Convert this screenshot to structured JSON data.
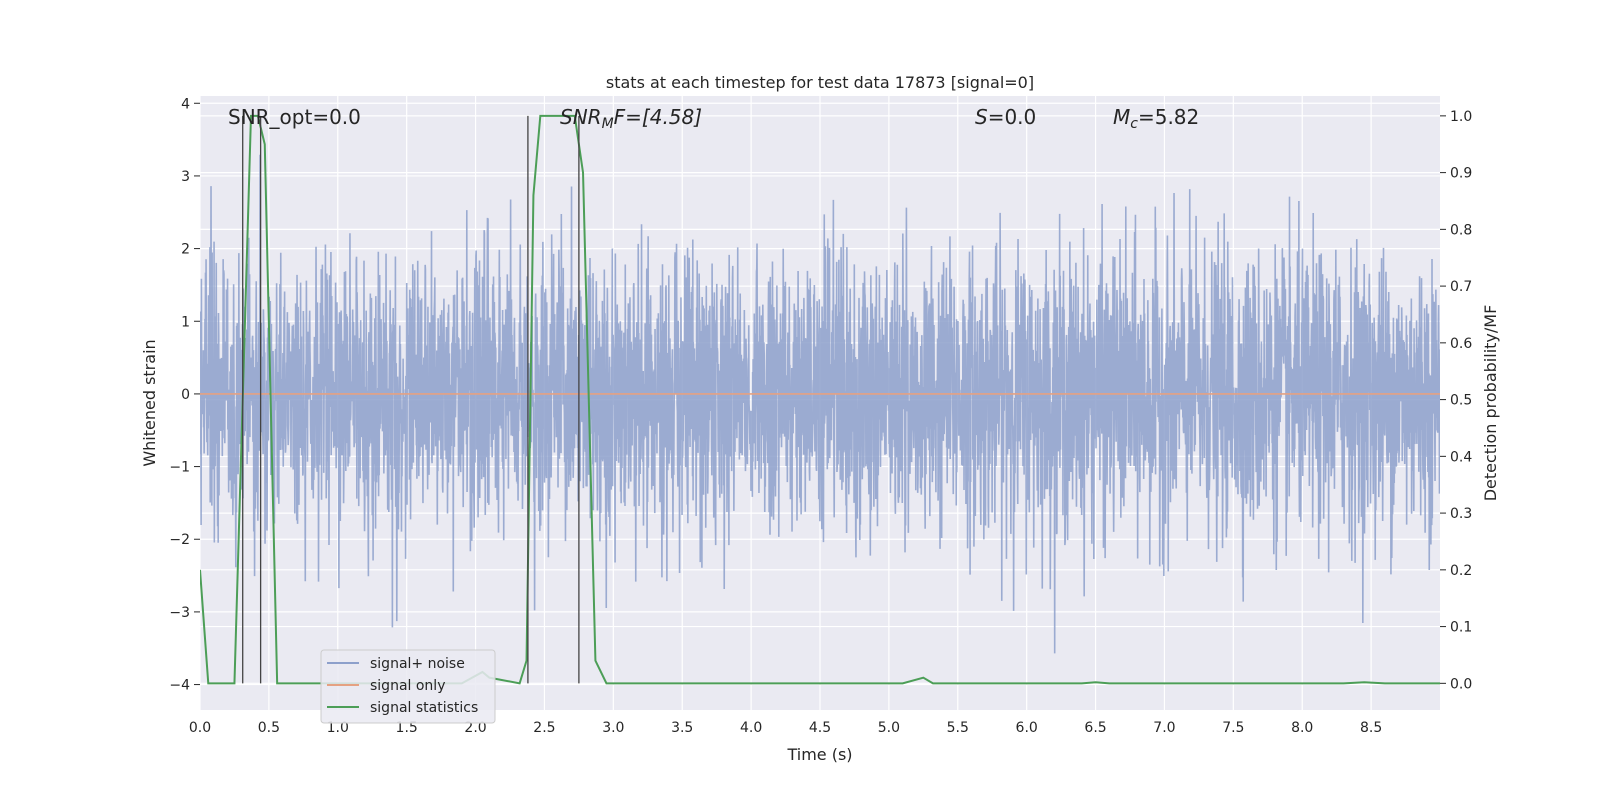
{
  "chart_data": {
    "type": "line",
    "title": "stats at each timestep for test data 17873 [signal=0]",
    "xlabel": "Time (s)",
    "ylabel_left": "Whitened strain",
    "ylabel_right": "Detection probability/MF",
    "xlim": [
      0,
      9.0
    ],
    "ylim_left": [
      -4.35,
      4.1
    ],
    "ylim_right": [
      -0.047,
      1.035
    ],
    "x_ticks": [
      0.0,
      0.5,
      1.0,
      1.5,
      2.0,
      2.5,
      3.0,
      3.5,
      4.0,
      4.5,
      5.0,
      5.5,
      6.0,
      6.5,
      7.0,
      7.5,
      8.0,
      8.5
    ],
    "x_tick_labels": [
      "0.0",
      "0.5",
      "1.0",
      "1.5",
      "2.0",
      "2.5",
      "3.0",
      "3.5",
      "4.0",
      "4.5",
      "5.0",
      "5.5",
      "6.0",
      "6.5",
      "7.0",
      "7.5",
      "8.0",
      "8.5"
    ],
    "y_left_ticks": [
      4,
      3,
      2,
      1,
      0,
      -1,
      -2,
      -3,
      -4
    ],
    "y_left_tick_labels": [
      "4",
      "3",
      "2",
      "1",
      "0",
      "−1",
      "−2",
      "−3",
      "−4"
    ],
    "y_right_ticks": [
      1.0,
      0.9,
      0.8,
      0.7,
      0.6,
      0.5,
      0.4,
      0.3,
      0.2,
      0.1,
      0.0
    ],
    "y_right_tick_labels": [
      "1.0",
      "0.9",
      "0.8",
      "0.7",
      "0.6",
      "0.5",
      "0.4",
      "0.3",
      "0.2",
      "0.1",
      "0.0"
    ],
    "grid": true,
    "legend_position": "bottom-left",
    "annotations": {
      "snr_opt": "SNR_opt=0.0",
      "snr_mf_prefix": "SNR",
      "snr_mf_sub": "M",
      "snr_mf_suffix": "F=[4.58]",
      "s_symbol": "S",
      "s_value": "=0.0",
      "mc_symbol": "M",
      "mc_sub": "c",
      "mc_value": "=5.82"
    },
    "markers_x": [
      0.31,
      0.44,
      2.38,
      2.75
    ],
    "series": [
      {
        "name": "signal+ noise",
        "color": "#8da0cb",
        "axis": "left",
        "noise_std": 0.95,
        "x_range": [
          0,
          9.0
        ],
        "samples": 4500
      },
      {
        "name": "signal only",
        "color": "#e5a182",
        "axis": "left",
        "x": [
          0,
          9.0
        ],
        "y": [
          0,
          0
        ]
      },
      {
        "name": "signal statistics",
        "color": "#4c9e57",
        "axis": "right",
        "x": [
          0.0,
          0.06,
          0.25,
          0.37,
          0.42,
          0.47,
          0.56,
          1.9,
          2.05,
          2.1,
          2.32,
          2.37,
          2.42,
          2.47,
          2.72,
          2.78,
          2.87,
          2.95,
          5.1,
          5.25,
          5.32,
          6.4,
          6.5,
          6.6,
          8.3,
          8.45,
          8.6,
          9.0
        ],
        "y": [
          0.2,
          0.0,
          0.0,
          1.0,
          1.0,
          0.95,
          0.0,
          0.0,
          0.02,
          0.01,
          0.0,
          0.04,
          0.86,
          1.0,
          1.0,
          0.9,
          0.04,
          0.0,
          0.0,
          0.01,
          0.0,
          0.0,
          0.002,
          0.0,
          0.0,
          0.002,
          0.0,
          0.0
        ]
      }
    ]
  }
}
